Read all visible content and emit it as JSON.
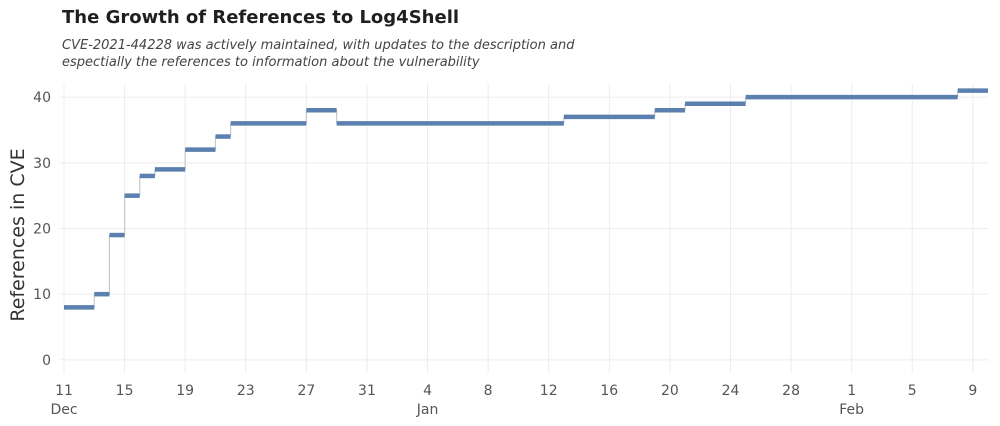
{
  "chart_data": {
    "type": "line",
    "step": true,
    "title": "The Growth of References to Log4Shell",
    "subtitle_lines": [
      "CVE-2021-44228 was actively maintained, with updates to the description and",
      "espectially the references to information about the vulnerability"
    ],
    "xlabel": "",
    "ylabel": "References in CVE",
    "x_start_date": "2021-12-11",
    "x_end_date": "2022-02-10",
    "xlim": [
      "2021-12-11",
      "2022-02-10"
    ],
    "ylim": [
      -2,
      42
    ],
    "y_ticks": [
      0,
      10,
      20,
      30,
      40
    ],
    "x_ticks": [
      {
        "date": "2021-12-11",
        "label": "11",
        "month": "Dec"
      },
      {
        "date": "2021-12-15",
        "label": "15",
        "month": ""
      },
      {
        "date": "2021-12-19",
        "label": "19",
        "month": ""
      },
      {
        "date": "2021-12-23",
        "label": "23",
        "month": ""
      },
      {
        "date": "2021-12-27",
        "label": "27",
        "month": ""
      },
      {
        "date": "2021-12-31",
        "label": "31",
        "month": ""
      },
      {
        "date": "2022-01-04",
        "label": "4",
        "month": "Jan"
      },
      {
        "date": "2022-01-08",
        "label": "8",
        "month": ""
      },
      {
        "date": "2022-01-12",
        "label": "12",
        "month": ""
      },
      {
        "date": "2022-01-16",
        "label": "16",
        "month": ""
      },
      {
        "date": "2022-01-20",
        "label": "20",
        "month": ""
      },
      {
        "date": "2022-01-24",
        "label": "24",
        "month": ""
      },
      {
        "date": "2022-01-28",
        "label": "28",
        "month": ""
      },
      {
        "date": "2022-02-01",
        "label": "1",
        "month": "Feb"
      },
      {
        "date": "2022-02-05",
        "label": "5",
        "month": ""
      },
      {
        "date": "2022-02-09",
        "label": "9",
        "month": ""
      }
    ],
    "grid": true,
    "color": "#5b7fae",
    "connector_color": "#c8c8c8",
    "steps": [
      {
        "start": "2021-12-11",
        "end": "2021-12-13",
        "value": 8
      },
      {
        "start": "2021-12-13",
        "end": "2021-12-14",
        "value": 10
      },
      {
        "start": "2021-12-14",
        "end": "2021-12-15",
        "value": 19
      },
      {
        "start": "2021-12-15",
        "end": "2021-12-16",
        "value": 25
      },
      {
        "start": "2021-12-16",
        "end": "2021-12-17",
        "value": 28
      },
      {
        "start": "2021-12-17",
        "end": "2021-12-19",
        "value": 29
      },
      {
        "start": "2021-12-19",
        "end": "2021-12-21",
        "value": 32
      },
      {
        "start": "2021-12-21",
        "end": "2021-12-22",
        "value": 34
      },
      {
        "start": "2021-12-22",
        "end": "2021-12-27",
        "value": 36
      },
      {
        "start": "2021-12-27",
        "end": "2021-12-29",
        "value": 38
      },
      {
        "start": "2021-12-29",
        "end": "2022-01-13",
        "value": 36
      },
      {
        "start": "2022-01-13",
        "end": "2022-01-19",
        "value": 37
      },
      {
        "start": "2022-01-19",
        "end": "2022-01-21",
        "value": 38
      },
      {
        "start": "2022-01-21",
        "end": "2022-01-25",
        "value": 39
      },
      {
        "start": "2022-01-25",
        "end": "2022-02-08",
        "value": 40
      },
      {
        "start": "2022-02-08",
        "end": "2022-02-10",
        "value": 41
      }
    ]
  }
}
